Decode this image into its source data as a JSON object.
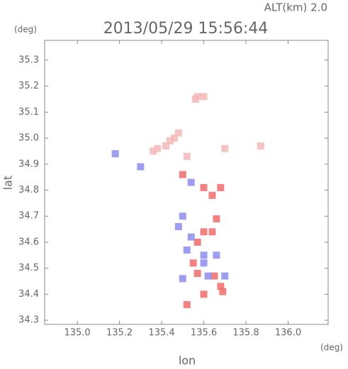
{
  "chart_data": {
    "type": "scatter",
    "title": "2013/05/29 15:56:44",
    "subtitle": "ALT(km) 2.0",
    "y_unit": "(deg)",
    "x_unit": "(deg)",
    "x_label": "lon",
    "y_label": "lat",
    "xlim": [
      134.845,
      136.19
    ],
    "ylim": [
      34.284,
      35.376
    ],
    "xticks": [
      {
        "value": 135.0,
        "label": "135.0"
      },
      135.2,
      135.4,
      135.6,
      135.8,
      {
        "value": 136.0,
        "label": "136.0"
      }
    ],
    "yticks": [
      35.3,
      35.2,
      35.1,
      {
        "value": 35.0,
        "label": "35.0"
      },
      34.9,
      34.8,
      34.7,
      34.6,
      34.5,
      34.4,
      34.3
    ],
    "series": [
      {
        "color": "#f5b8b8",
        "x": [
          135.57,
          135.56,
          135.6,
          135.48,
          135.46,
          135.44,
          135.42,
          135.38,
          135.36,
          135.7,
          135.52,
          135.87
        ],
        "values": [
          35.16,
          35.15,
          35.16,
          35.02,
          35.0,
          34.99,
          34.97,
          34.96,
          34.95,
          34.96,
          34.93,
          34.97
        ]
      },
      {
        "color": "#ee6c6c",
        "x": [
          135.6,
          135.64,
          135.68,
          135.66,
          135.6,
          135.57,
          135.65,
          135.68,
          135.69,
          135.57,
          135.6,
          135.52,
          135.55,
          135.5,
          135.64
        ],
        "values": [
          34.81,
          34.78,
          34.81,
          34.69,
          34.64,
          34.6,
          34.47,
          34.43,
          34.41,
          34.48,
          34.4,
          34.36,
          34.52,
          34.86,
          34.64
        ]
      },
      {
        "color": "#8c8cf0",
        "x": [
          135.18,
          135.3,
          135.5,
          135.48,
          135.54,
          135.52,
          135.6,
          135.7,
          135.62,
          135.5,
          135.54,
          135.6,
          135.66
        ],
        "values": [
          34.94,
          34.89,
          34.7,
          34.66,
          34.62,
          34.57,
          34.52,
          34.47,
          34.47,
          34.46,
          34.83,
          34.55,
          34.55
        ]
      }
    ]
  }
}
